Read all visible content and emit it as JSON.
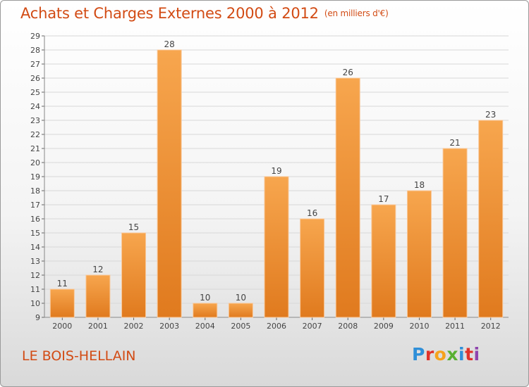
{
  "title": "Achats et Charges Externes 2000 à 2012",
  "subtitle": "(en milliers d'€)",
  "commune": "LE BOIS-HELLAIN",
  "brand": "Proxiti",
  "colors": {
    "accent_text": "#d24b14",
    "bar_top": "#f7a64e",
    "bar_bottom": "#e07a1e",
    "grid": "#d8d8d8"
  },
  "chart_data": {
    "type": "bar",
    "categories": [
      "2000",
      "2001",
      "2002",
      "2003",
      "2004",
      "2005",
      "2006",
      "2007",
      "2008",
      "2009",
      "2010",
      "2011",
      "2012"
    ],
    "values": [
      11,
      12,
      15,
      28,
      10,
      10,
      19,
      16,
      26,
      17,
      18,
      21,
      23
    ],
    "ylim": [
      9,
      29
    ],
    "yticks": [
      9,
      10,
      11,
      12,
      13,
      14,
      15,
      16,
      17,
      18,
      19,
      20,
      21,
      22,
      23,
      24,
      25,
      26,
      27,
      28,
      29
    ],
    "grid": true,
    "data_labels": true
  }
}
